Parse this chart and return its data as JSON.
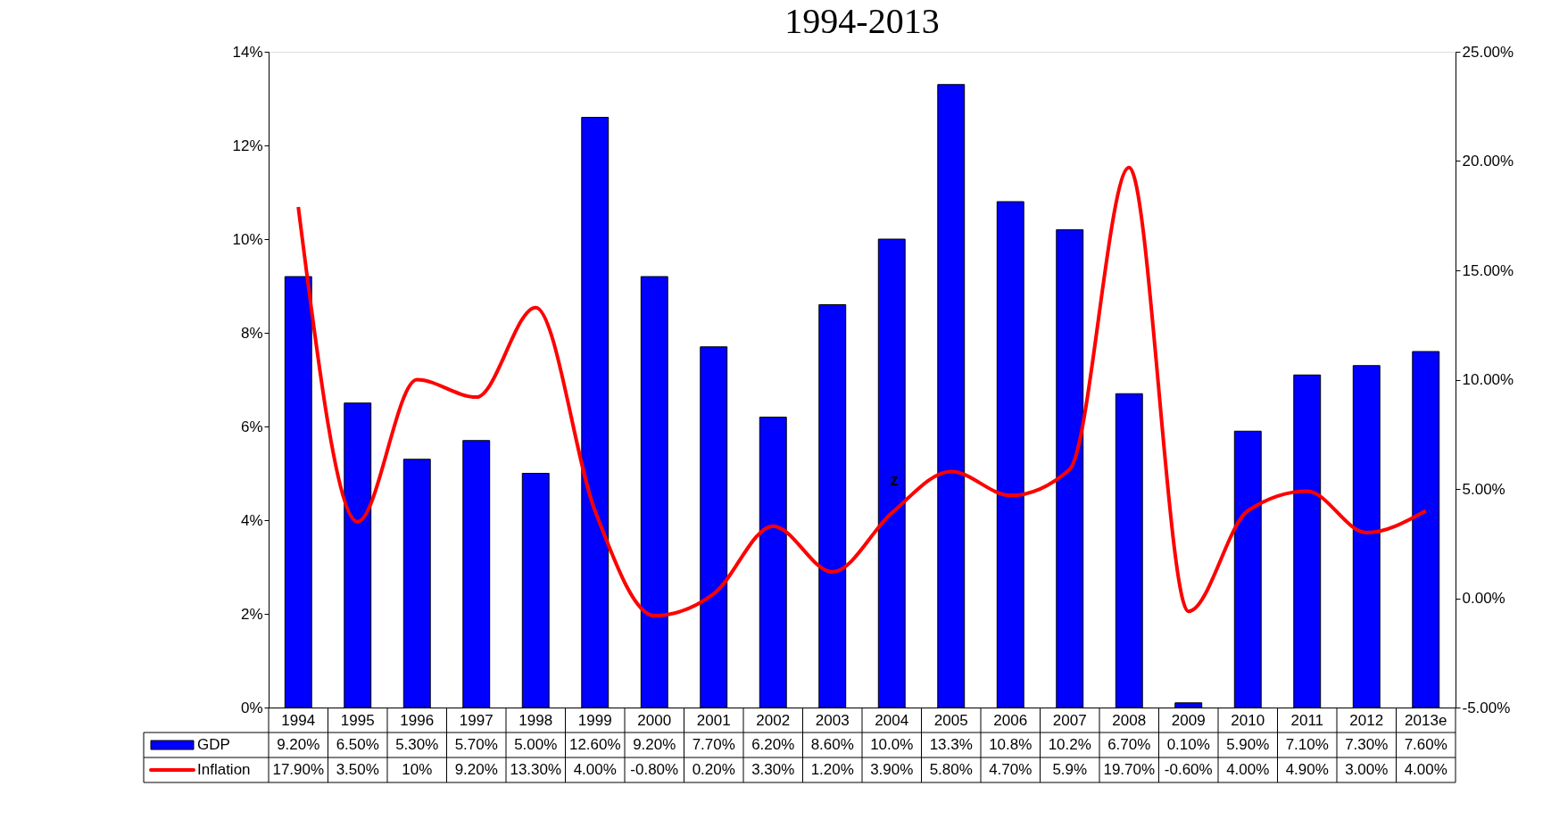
{
  "chart_data": {
    "type": "bar",
    "title": "1994-2013",
    "categories": [
      "1994",
      "1995",
      "1996",
      "1997",
      "1998",
      "1999",
      "2000",
      "2001",
      "2002",
      "2003",
      "2004",
      "2005",
      "2006",
      "2007",
      "2008",
      "2009",
      "2010",
      "2011",
      "2012",
      "2013e"
    ],
    "series": [
      {
        "name": "GDP",
        "color": "#0000ff",
        "values": [
          9.2,
          6.5,
          5.3,
          5.7,
          5.0,
          12.6,
          9.2,
          7.7,
          6.2,
          8.6,
          10.0,
          13.3,
          10.8,
          10.2,
          6.7,
          0.1,
          5.9,
          7.1,
          7.3,
          7.6
        ],
        "value_labels": [
          "9.20%",
          "6.50%",
          "5.30%",
          "5.70%",
          "5.00%",
          "12.60%",
          "9.20%",
          "7.70%",
          "6.20%",
          "8.60%",
          "10.0%",
          "13.3%",
          "10.8%",
          "10.2%",
          "6.70%",
          "0.10%",
          "5.90%",
          "7.10%",
          "7.30%",
          "7.60%"
        ]
      },
      {
        "name": "Inflation",
        "type": "line",
        "axis": "y2",
        "color": "#ff0000",
        "values": [
          17.9,
          3.5,
          10,
          9.2,
          13.3,
          4.0,
          -0.8,
          0.2,
          3.3,
          1.2,
          3.9,
          5.8,
          4.7,
          5.9,
          19.7,
          -0.6,
          4.0,
          4.9,
          3.0,
          4.0
        ],
        "value_labels": [
          "17.90%",
          "3.50%",
          "10%",
          "9.20%",
          "13.30%",
          "4.00%",
          "-0.80%",
          "0.20%",
          "3.30%",
          "1.20%",
          "3.90%",
          "5.80%",
          "4.70%",
          "5.9%",
          "19.70%",
          "-0.60%",
          "4.00%",
          "4.90%",
          "3.00%",
          "4.00%"
        ]
      }
    ],
    "ylim": [
      0,
      14
    ],
    "yticks": [
      {
        "value": 0,
        "label": "0%"
      },
      {
        "value": 2,
        "label": "2%"
      },
      {
        "value": 4,
        "label": "4%"
      },
      {
        "value": 6,
        "label": "6%"
      },
      {
        "value": 8,
        "label": "8%"
      },
      {
        "value": 10,
        "label": "10%"
      },
      {
        "value": 12,
        "label": "12%"
      },
      {
        "value": 14,
        "label": "14%"
      }
    ],
    "y2lim": [
      -5,
      25
    ],
    "y2ticks": [
      {
        "value": -5,
        "label": "-5.00%"
      },
      {
        "value": 0,
        "label": "0.00%"
      },
      {
        "value": 5,
        "label": "5.00%"
      },
      {
        "value": 10,
        "label": "10.00%"
      },
      {
        "value": 15,
        "label": "15.00%"
      },
      {
        "value": 20,
        "label": "20.00%"
      },
      {
        "value": 25,
        "label": "25.00%"
      }
    ],
    "annotations": [
      "z"
    ],
    "legend": "bottom left",
    "grid": false
  }
}
